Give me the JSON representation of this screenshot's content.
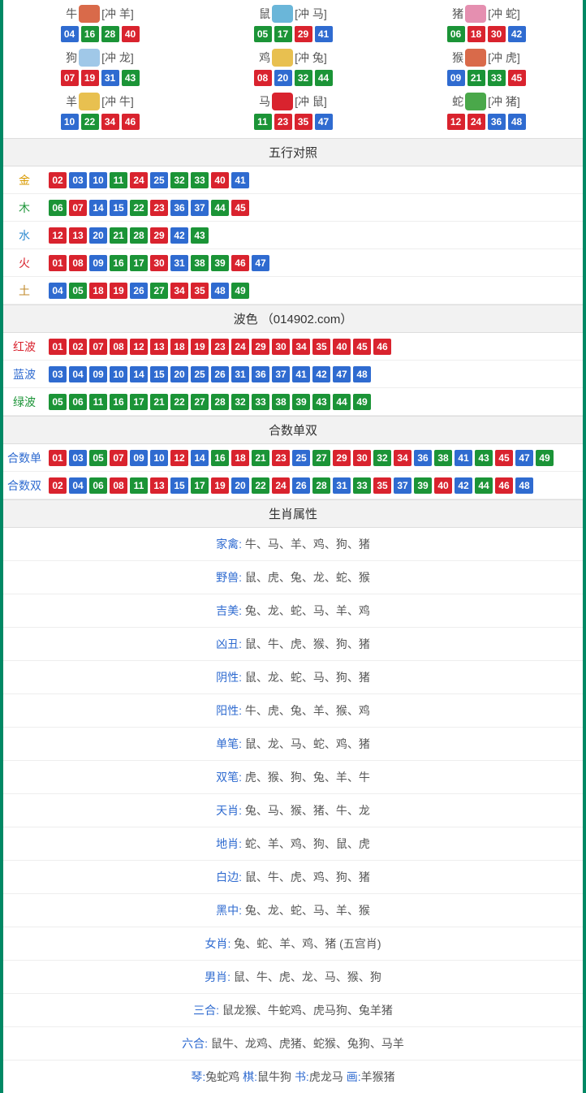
{
  "colors": {
    "red": "#d9232e",
    "blue": "#2f6bd0",
    "green": "#1b9437",
    "border": "#008864",
    "header_bg": "#f2f2f2"
  },
  "zodiac": [
    {
      "name": "牛",
      "icon_bg": "#d96a4a",
      "conflict": "[冲 羊]",
      "nums": [
        {
          "v": "04",
          "c": "blue"
        },
        {
          "v": "16",
          "c": "green"
        },
        {
          "v": "28",
          "c": "green"
        },
        {
          "v": "40",
          "c": "red"
        }
      ]
    },
    {
      "name": "鼠",
      "icon_bg": "#6ab6d9",
      "conflict": "[冲 马]",
      "nums": [
        {
          "v": "05",
          "c": "green"
        },
        {
          "v": "17",
          "c": "green"
        },
        {
          "v": "29",
          "c": "red"
        },
        {
          "v": "41",
          "c": "blue"
        }
      ]
    },
    {
      "name": "猪",
      "icon_bg": "#e58fb0",
      "conflict": "[冲 蛇]",
      "nums": [
        {
          "v": "06",
          "c": "green"
        },
        {
          "v": "18",
          "c": "red"
        },
        {
          "v": "30",
          "c": "red"
        },
        {
          "v": "42",
          "c": "blue"
        }
      ]
    },
    {
      "name": "狗",
      "icon_bg": "#a0c8e8",
      "conflict": "[冲 龙]",
      "nums": [
        {
          "v": "07",
          "c": "red"
        },
        {
          "v": "19",
          "c": "red"
        },
        {
          "v": "31",
          "c": "blue"
        },
        {
          "v": "43",
          "c": "green"
        }
      ]
    },
    {
      "name": "鸡",
      "icon_bg": "#e8c050",
      "conflict": "[冲 兔]",
      "nums": [
        {
          "v": "08",
          "c": "red"
        },
        {
          "v": "20",
          "c": "blue"
        },
        {
          "v": "32",
          "c": "green"
        },
        {
          "v": "44",
          "c": "green"
        }
      ]
    },
    {
      "name": "猴",
      "icon_bg": "#d96a4a",
      "conflict": "[冲 虎]",
      "nums": [
        {
          "v": "09",
          "c": "blue"
        },
        {
          "v": "21",
          "c": "green"
        },
        {
          "v": "33",
          "c": "green"
        },
        {
          "v": "45",
          "c": "red"
        }
      ]
    },
    {
      "name": "羊",
      "icon_bg": "#e8c050",
      "conflict": "[冲 牛]",
      "nums": [
        {
          "v": "10",
          "c": "blue"
        },
        {
          "v": "22",
          "c": "green"
        },
        {
          "v": "34",
          "c": "red"
        },
        {
          "v": "46",
          "c": "red"
        }
      ]
    },
    {
      "name": "马",
      "icon_bg": "#d9232e",
      "conflict": "[冲 鼠]",
      "nums": [
        {
          "v": "11",
          "c": "green"
        },
        {
          "v": "23",
          "c": "red"
        },
        {
          "v": "35",
          "c": "red"
        },
        {
          "v": "47",
          "c": "blue"
        }
      ]
    },
    {
      "name": "蛇",
      "icon_bg": "#4aa84a",
      "conflict": "[冲 猪]",
      "nums": [
        {
          "v": "12",
          "c": "red"
        },
        {
          "v": "24",
          "c": "red"
        },
        {
          "v": "36",
          "c": "blue"
        },
        {
          "v": "48",
          "c": "blue"
        }
      ]
    }
  ],
  "wuxing_header": "五行对照",
  "wuxing": [
    {
      "label": "金",
      "label_class": "lbl-gold",
      "nums": [
        {
          "v": "02",
          "c": "red"
        },
        {
          "v": "03",
          "c": "blue"
        },
        {
          "v": "10",
          "c": "blue"
        },
        {
          "v": "11",
          "c": "green"
        },
        {
          "v": "24",
          "c": "red"
        },
        {
          "v": "25",
          "c": "blue"
        },
        {
          "v": "32",
          "c": "green"
        },
        {
          "v": "33",
          "c": "green"
        },
        {
          "v": "40",
          "c": "red"
        },
        {
          "v": "41",
          "c": "blue"
        }
      ]
    },
    {
      "label": "木",
      "label_class": "lbl-wood",
      "nums": [
        {
          "v": "06",
          "c": "green"
        },
        {
          "v": "07",
          "c": "red"
        },
        {
          "v": "14",
          "c": "blue"
        },
        {
          "v": "15",
          "c": "blue"
        },
        {
          "v": "22",
          "c": "green"
        },
        {
          "v": "23",
          "c": "red"
        },
        {
          "v": "36",
          "c": "blue"
        },
        {
          "v": "37",
          "c": "blue"
        },
        {
          "v": "44",
          "c": "green"
        },
        {
          "v": "45",
          "c": "red"
        }
      ]
    },
    {
      "label": "水",
      "label_class": "lbl-water",
      "nums": [
        {
          "v": "12",
          "c": "red"
        },
        {
          "v": "13",
          "c": "red"
        },
        {
          "v": "20",
          "c": "blue"
        },
        {
          "v": "21",
          "c": "green"
        },
        {
          "v": "28",
          "c": "green"
        },
        {
          "v": "29",
          "c": "red"
        },
        {
          "v": "42",
          "c": "blue"
        },
        {
          "v": "43",
          "c": "green"
        }
      ]
    },
    {
      "label": "火",
      "label_class": "lbl-fire",
      "nums": [
        {
          "v": "01",
          "c": "red"
        },
        {
          "v": "08",
          "c": "red"
        },
        {
          "v": "09",
          "c": "blue"
        },
        {
          "v": "16",
          "c": "green"
        },
        {
          "v": "17",
          "c": "green"
        },
        {
          "v": "30",
          "c": "red"
        },
        {
          "v": "31",
          "c": "blue"
        },
        {
          "v": "38",
          "c": "green"
        },
        {
          "v": "39",
          "c": "green"
        },
        {
          "v": "46",
          "c": "red"
        },
        {
          "v": "47",
          "c": "blue"
        }
      ]
    },
    {
      "label": "土",
      "label_class": "lbl-earth",
      "nums": [
        {
          "v": "04",
          "c": "blue"
        },
        {
          "v": "05",
          "c": "green"
        },
        {
          "v": "18",
          "c": "red"
        },
        {
          "v": "19",
          "c": "red"
        },
        {
          "v": "26",
          "c": "blue"
        },
        {
          "v": "27",
          "c": "green"
        },
        {
          "v": "34",
          "c": "red"
        },
        {
          "v": "35",
          "c": "red"
        },
        {
          "v": "48",
          "c": "blue"
        },
        {
          "v": "49",
          "c": "green"
        }
      ]
    }
  ],
  "bose_header": "波色 （014902.com）",
  "bose": [
    {
      "label": "红波",
      "label_class": "lbl-red",
      "nums": [
        {
          "v": "01",
          "c": "red"
        },
        {
          "v": "02",
          "c": "red"
        },
        {
          "v": "07",
          "c": "red"
        },
        {
          "v": "08",
          "c": "red"
        },
        {
          "v": "12",
          "c": "red"
        },
        {
          "v": "13",
          "c": "red"
        },
        {
          "v": "18",
          "c": "red"
        },
        {
          "v": "19",
          "c": "red"
        },
        {
          "v": "23",
          "c": "red"
        },
        {
          "v": "24",
          "c": "red"
        },
        {
          "v": "29",
          "c": "red"
        },
        {
          "v": "30",
          "c": "red"
        },
        {
          "v": "34",
          "c": "red"
        },
        {
          "v": "35",
          "c": "red"
        },
        {
          "v": "40",
          "c": "red"
        },
        {
          "v": "45",
          "c": "red"
        },
        {
          "v": "46",
          "c": "red"
        }
      ]
    },
    {
      "label": "蓝波",
      "label_class": "lbl-blue",
      "nums": [
        {
          "v": "03",
          "c": "blue"
        },
        {
          "v": "04",
          "c": "blue"
        },
        {
          "v": "09",
          "c": "blue"
        },
        {
          "v": "10",
          "c": "blue"
        },
        {
          "v": "14",
          "c": "blue"
        },
        {
          "v": "15",
          "c": "blue"
        },
        {
          "v": "20",
          "c": "blue"
        },
        {
          "v": "25",
          "c": "blue"
        },
        {
          "v": "26",
          "c": "blue"
        },
        {
          "v": "31",
          "c": "blue"
        },
        {
          "v": "36",
          "c": "blue"
        },
        {
          "v": "37",
          "c": "blue"
        },
        {
          "v": "41",
          "c": "blue"
        },
        {
          "v": "42",
          "c": "blue"
        },
        {
          "v": "47",
          "c": "blue"
        },
        {
          "v": "48",
          "c": "blue"
        }
      ]
    },
    {
      "label": "绿波",
      "label_class": "lbl-green",
      "nums": [
        {
          "v": "05",
          "c": "green"
        },
        {
          "v": "06",
          "c": "green"
        },
        {
          "v": "11",
          "c": "green"
        },
        {
          "v": "16",
          "c": "green"
        },
        {
          "v": "17",
          "c": "green"
        },
        {
          "v": "21",
          "c": "green"
        },
        {
          "v": "22",
          "c": "green"
        },
        {
          "v": "27",
          "c": "green"
        },
        {
          "v": "28",
          "c": "green"
        },
        {
          "v": "32",
          "c": "green"
        },
        {
          "v": "33",
          "c": "green"
        },
        {
          "v": "38",
          "c": "green"
        },
        {
          "v": "39",
          "c": "green"
        },
        {
          "v": "43",
          "c": "green"
        },
        {
          "v": "44",
          "c": "green"
        },
        {
          "v": "49",
          "c": "green"
        }
      ]
    }
  ],
  "heshu_header": "合数单双",
  "heshu": [
    {
      "label": "合数单",
      "label_class": "lbl-blue",
      "nums": [
        {
          "v": "01",
          "c": "red"
        },
        {
          "v": "03",
          "c": "blue"
        },
        {
          "v": "05",
          "c": "green"
        },
        {
          "v": "07",
          "c": "red"
        },
        {
          "v": "09",
          "c": "blue"
        },
        {
          "v": "10",
          "c": "blue"
        },
        {
          "v": "12",
          "c": "red"
        },
        {
          "v": "14",
          "c": "blue"
        },
        {
          "v": "16",
          "c": "green"
        },
        {
          "v": "18",
          "c": "red"
        },
        {
          "v": "21",
          "c": "green"
        },
        {
          "v": "23",
          "c": "red"
        },
        {
          "v": "25",
          "c": "blue"
        },
        {
          "v": "27",
          "c": "green"
        },
        {
          "v": "29",
          "c": "red"
        },
        {
          "v": "30",
          "c": "red"
        },
        {
          "v": "32",
          "c": "green"
        },
        {
          "v": "34",
          "c": "red"
        },
        {
          "v": "36",
          "c": "blue"
        },
        {
          "v": "38",
          "c": "green"
        },
        {
          "v": "41",
          "c": "blue"
        },
        {
          "v": "43",
          "c": "green"
        },
        {
          "v": "45",
          "c": "red"
        },
        {
          "v": "47",
          "c": "blue"
        },
        {
          "v": "49",
          "c": "green"
        }
      ]
    },
    {
      "label": "合数双",
      "label_class": "lbl-blue",
      "nums": [
        {
          "v": "02",
          "c": "red"
        },
        {
          "v": "04",
          "c": "blue"
        },
        {
          "v": "06",
          "c": "green"
        },
        {
          "v": "08",
          "c": "red"
        },
        {
          "v": "11",
          "c": "green"
        },
        {
          "v": "13",
          "c": "red"
        },
        {
          "v": "15",
          "c": "blue"
        },
        {
          "v": "17",
          "c": "green"
        },
        {
          "v": "19",
          "c": "red"
        },
        {
          "v": "20",
          "c": "blue"
        },
        {
          "v": "22",
          "c": "green"
        },
        {
          "v": "24",
          "c": "red"
        },
        {
          "v": "26",
          "c": "blue"
        },
        {
          "v": "28",
          "c": "green"
        },
        {
          "v": "31",
          "c": "blue"
        },
        {
          "v": "33",
          "c": "green"
        },
        {
          "v": "35",
          "c": "red"
        },
        {
          "v": "37",
          "c": "blue"
        },
        {
          "v": "39",
          "c": "green"
        },
        {
          "v": "40",
          "c": "red"
        },
        {
          "v": "42",
          "c": "blue"
        },
        {
          "v": "44",
          "c": "green"
        },
        {
          "v": "46",
          "c": "red"
        },
        {
          "v": "48",
          "c": "blue"
        }
      ]
    }
  ],
  "shengxiao_header": "生肖属性",
  "shengxiao_attrs": [
    {
      "label": "家禽:",
      "text": " 牛、马、羊、鸡、狗、猪"
    },
    {
      "label": "野兽:",
      "text": " 鼠、虎、兔、龙、蛇、猴"
    },
    {
      "label": "吉美:",
      "text": " 兔、龙、蛇、马、羊、鸡"
    },
    {
      "label": "凶丑:",
      "text": " 鼠、牛、虎、猴、狗、猪"
    },
    {
      "label": "阴性:",
      "text": " 鼠、龙、蛇、马、狗、猪"
    },
    {
      "label": "阳性:",
      "text": " 牛、虎、兔、羊、猴、鸡"
    },
    {
      "label": "单笔:",
      "text": " 鼠、龙、马、蛇、鸡、猪"
    },
    {
      "label": "双笔:",
      "text": " 虎、猴、狗、兔、羊、牛"
    },
    {
      "label": "天肖:",
      "text": " 兔、马、猴、猪、牛、龙"
    },
    {
      "label": "地肖:",
      "text": " 蛇、羊、鸡、狗、鼠、虎"
    },
    {
      "label": "白边:",
      "text": " 鼠、牛、虎、鸡、狗、猪"
    },
    {
      "label": "黑中:",
      "text": " 兔、龙、蛇、马、羊、猴"
    },
    {
      "label": "女肖:",
      "text": " 兔、蛇、羊、鸡、猪 (五宫肖)"
    },
    {
      "label": "男肖:",
      "text": " 鼠、牛、虎、龙、马、猴、狗"
    },
    {
      "label": "三合:",
      "text": " 鼠龙猴、牛蛇鸡、虎马狗、兔羊猪"
    },
    {
      "label": "六合:",
      "text": " 鼠牛、龙鸡、虎猪、蛇猴、兔狗、马羊"
    }
  ],
  "bottom_row": {
    "parts": [
      {
        "label": "琴:",
        "text": "兔蛇鸡   "
      },
      {
        "label": "棋:",
        "text": "鼠牛狗   "
      },
      {
        "label": "书:",
        "text": "虎龙马   "
      },
      {
        "label": "画:",
        "text": "羊猴猪"
      }
    ]
  }
}
